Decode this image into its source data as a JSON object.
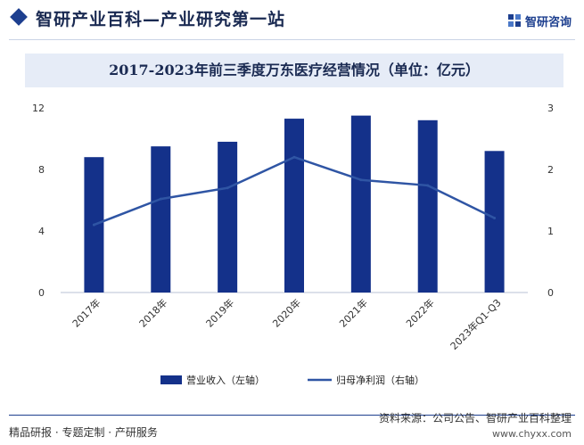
{
  "header": {
    "site_title": "智研产业百科—产业研究第一站",
    "logo_text": "智研咨询",
    "logo_icon": "zhiyan-logo-icon"
  },
  "chart_data": {
    "type": "bar",
    "title": "2017-2023年前三季度万东医疗经营情况（单位：亿元）",
    "categories": [
      "2017年",
      "2018年",
      "2019年",
      "2020年",
      "2021年",
      "2022年",
      "2023年Q1-Q3"
    ],
    "series": [
      {
        "name": "营业收入（左轴）",
        "type": "bar",
        "axis": "left",
        "color": "#14318a",
        "values": [
          8.8,
          9.5,
          9.8,
          11.3,
          11.5,
          11.2,
          9.2
        ]
      },
      {
        "name": "归母净利润（右轴）",
        "type": "line",
        "axis": "right",
        "color": "#2f55a4",
        "values": [
          1.1,
          1.52,
          1.7,
          2.2,
          1.83,
          1.74,
          1.21
        ]
      }
    ],
    "ylim_left": [
      0,
      12
    ],
    "yticks_left": [
      "0",
      "4",
      "8",
      "12"
    ],
    "ylim_right": [
      0,
      3
    ],
    "yticks_right": [
      "0",
      "1",
      "2",
      "3"
    ],
    "legend_position": "bottom",
    "grid": false
  },
  "footer": {
    "left_text": "精品研报 · 专题定制 · 产研服务",
    "source_text": "资料来源：公司公告、智研产业百科整理",
    "url_text": "www.chyxx.com"
  }
}
